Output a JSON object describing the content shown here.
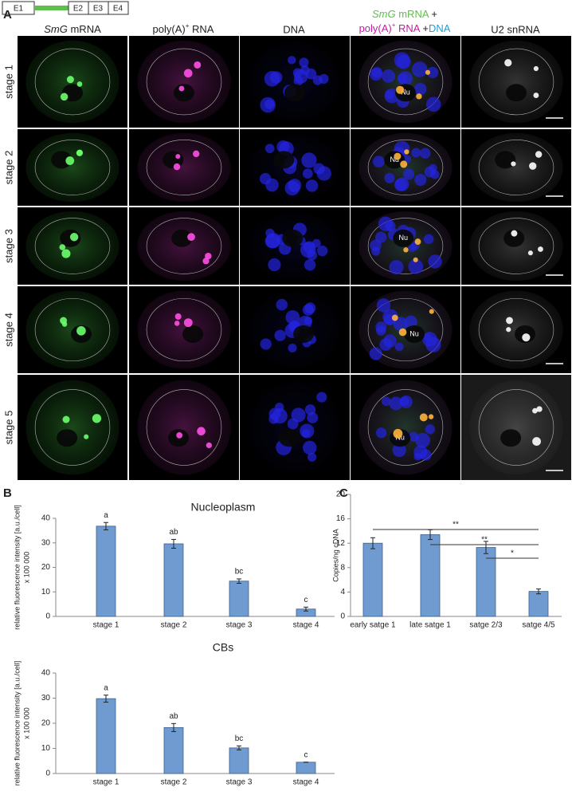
{
  "panel_labels": [
    "A",
    "B",
    "C"
  ],
  "gene": {
    "exons": [
      "E1",
      "E2",
      "E3",
      "E4"
    ]
  },
  "panel_a": {
    "columns": [
      {
        "italic": "SmG",
        "text": " mRNA"
      },
      {
        "text": "poly(A)",
        "sup": "+",
        "rest": " RNA"
      },
      {
        "text": "DNA"
      },
      {
        "italic": "SmG",
        "text": " mRNA",
        "plus": " +",
        "line2": "poly(A)",
        "sup": "+",
        "rna": " RNA",
        "plus2": " +",
        "dna": "DNA"
      },
      {
        "text": "U2 snRNA"
      }
    ],
    "rows": [
      "stage 1",
      "stage 2",
      "stage 3",
      "stage 4",
      "stage 5"
    ],
    "nucleolus": "Nu"
  },
  "chart_data": [
    {
      "type": "bar",
      "title": "Nucleoplasm",
      "ylabel": [
        "relative fluorescence intensity [a.u./cell]",
        "x 100 000"
      ],
      "categories": [
        "stage 1",
        "stage 2",
        "stage 3",
        "stage 4"
      ],
      "values": [
        36.8,
        29.6,
        14.4,
        3.0
      ],
      "errors": [
        1.5,
        1.8,
        0.9,
        0.8
      ],
      "letters": [
        "a",
        "ab",
        "bc",
        "c"
      ],
      "color": "#6f9bd1",
      "ylim": [
        0,
        40
      ],
      "yticks": [
        0,
        10,
        20,
        30,
        40
      ]
    },
    {
      "type": "bar",
      "title": "CBs",
      "ylabel": [
        "relative fluorescence intensity [a.u./cell]",
        "x 100 000"
      ],
      "categories": [
        "stage 1",
        "stage 2",
        "stage 3",
        "stage 4"
      ],
      "values": [
        29.8,
        18.3,
        10.2,
        4.5
      ],
      "errors": [
        1.4,
        1.6,
        0.8,
        0
      ],
      "letters": [
        "a",
        "ab",
        "bc",
        "c"
      ],
      "color": "#6f9bd1",
      "ylim": [
        0,
        40
      ],
      "yticks": [
        0,
        10,
        20,
        30,
        40
      ]
    },
    {
      "type": "bar",
      "ylabel": [
        "Copies/ng cDNA"
      ],
      "categories": [
        "early satge 1",
        "late satge 1",
        "satge 2/3",
        "satge 4/5"
      ],
      "values": [
        12.0,
        13.4,
        11.3,
        4.1
      ],
      "errors": [
        0.9,
        0.8,
        1.0,
        0.4
      ],
      "significance": [
        "**",
        "**",
        "*"
      ],
      "color": "#6f9bd1",
      "ylim": [
        0,
        20
      ],
      "yticks": [
        0,
        4,
        8,
        12,
        16,
        20
      ]
    }
  ]
}
